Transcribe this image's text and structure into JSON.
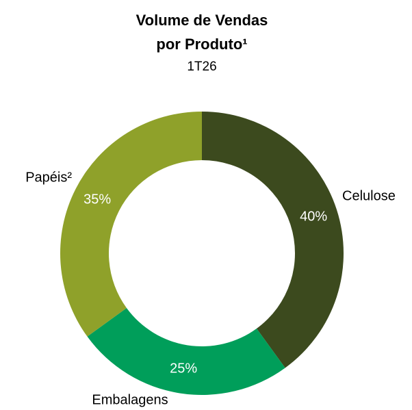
{
  "chart_data": {
    "type": "donut",
    "title": [
      "Volume de Vendas",
      "por Produto¹"
    ],
    "subtitle": "1T26",
    "categories": [
      "Celulose",
      "Embalagens",
      "Papéis²"
    ],
    "values": [
      40,
      25,
      35
    ],
    "value_labels": [
      "40%",
      "25%",
      "35%"
    ],
    "colors": [
      "#3c4a1e",
      "#009e5a",
      "#8fa12a"
    ]
  }
}
